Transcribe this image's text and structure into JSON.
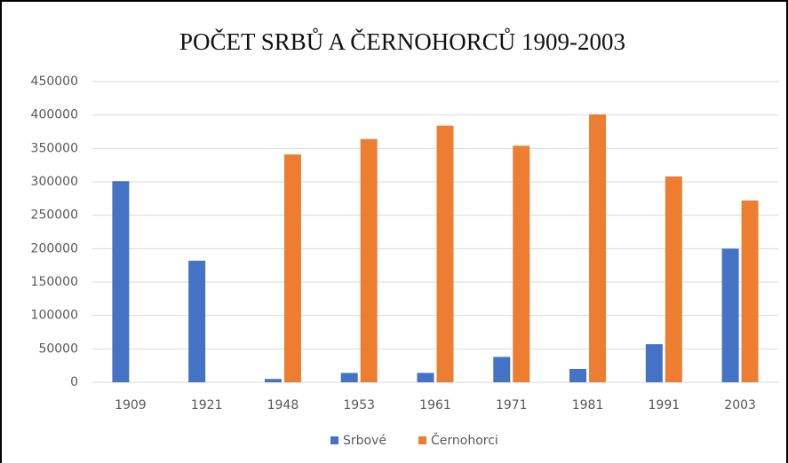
{
  "chart_data": {
    "type": "bar",
    "title": "POČET SRBŮ A ČERNOHORCŮ  1909-2003",
    "categories": [
      "1909",
      "1921",
      "1948",
      "1953",
      "1961",
      "1971",
      "1981",
      "1991",
      "2003"
    ],
    "series": [
      {
        "name": "Srbové",
        "color": "#4472c4",
        "values": [
          301000,
          182000,
          5000,
          14000,
          14000,
          38000,
          20000,
          57000,
          200000
        ]
      },
      {
        "name": "Černohorci",
        "color": "#ed7d31",
        "values": [
          0,
          0,
          341000,
          364000,
          384000,
          354000,
          401000,
          308000,
          272000
        ]
      }
    ],
    "ylim": [
      0,
      450000
    ],
    "yticks": [
      0,
      50000,
      100000,
      150000,
      200000,
      250000,
      300000,
      350000,
      400000,
      450000
    ],
    "grid": true,
    "legend": "bottom"
  }
}
